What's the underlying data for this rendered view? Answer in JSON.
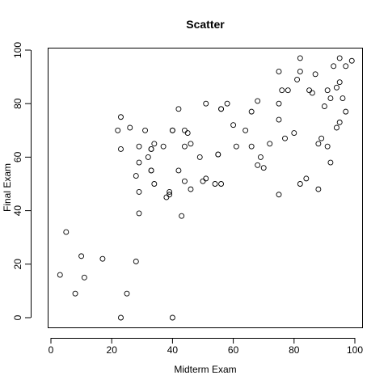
{
  "chart_data": {
    "type": "scatter",
    "title": "Scatter",
    "xlabel": "Midterm Exam",
    "ylabel": "Final Exam",
    "xlim": [
      0,
      100
    ],
    "ylim": [
      0,
      100
    ],
    "xticks": [
      "0",
      "20",
      "40",
      "60",
      "80",
      "100"
    ],
    "yticks": [
      "0",
      "20",
      "40",
      "60",
      "80",
      "100"
    ],
    "grid": false,
    "marker": "open-circle",
    "color": "#000000",
    "points": [
      [
        3,
        16
      ],
      [
        5,
        32
      ],
      [
        8,
        9
      ],
      [
        10,
        23
      ],
      [
        11,
        15
      ],
      [
        17,
        22
      ],
      [
        22,
        70
      ],
      [
        23,
        75
      ],
      [
        23,
        63
      ],
      [
        23,
        0
      ],
      [
        25,
        9
      ],
      [
        26,
        71
      ],
      [
        28,
        53
      ],
      [
        28,
        21
      ],
      [
        29,
        64
      ],
      [
        29,
        58
      ],
      [
        29,
        47
      ],
      [
        29,
        39
      ],
      [
        31,
        70
      ],
      [
        32,
        60
      ],
      [
        33,
        63
      ],
      [
        33,
        63
      ],
      [
        33,
        55
      ],
      [
        33,
        55
      ],
      [
        34,
        65
      ],
      [
        34,
        50
      ],
      [
        37,
        64
      ],
      [
        38,
        45
      ],
      [
        39,
        47
      ],
      [
        39,
        46
      ],
      [
        40,
        70
      ],
      [
        40,
        70
      ],
      [
        40,
        0
      ],
      [
        42,
        78
      ],
      [
        42,
        55
      ],
      [
        43,
        38
      ],
      [
        44,
        70
      ],
      [
        44,
        64
      ],
      [
        44,
        51
      ],
      [
        45,
        69
      ],
      [
        46,
        65
      ],
      [
        46,
        48
      ],
      [
        49,
        60
      ],
      [
        50,
        51
      ],
      [
        51,
        80
      ],
      [
        51,
        52
      ],
      [
        54,
        50
      ],
      [
        55,
        61
      ],
      [
        55,
        61
      ],
      [
        56,
        78
      ],
      [
        56,
        78
      ],
      [
        56,
        50
      ],
      [
        58,
        80
      ],
      [
        60,
        72
      ],
      [
        61,
        64
      ],
      [
        64,
        70
      ],
      [
        66,
        77
      ],
      [
        66,
        64
      ],
      [
        68,
        81
      ],
      [
        68,
        57
      ],
      [
        69,
        60
      ],
      [
        70,
        56
      ],
      [
        72,
        65
      ],
      [
        75,
        92
      ],
      [
        75,
        80
      ],
      [
        75,
        74
      ],
      [
        75,
        46
      ],
      [
        76,
        85
      ],
      [
        77,
        67
      ],
      [
        78,
        85
      ],
      [
        80,
        69
      ],
      [
        81,
        89
      ],
      [
        82,
        97
      ],
      [
        82,
        92
      ],
      [
        82,
        50
      ],
      [
        84,
        52
      ],
      [
        85,
        85
      ],
      [
        86,
        84
      ],
      [
        87,
        91
      ],
      [
        88,
        65
      ],
      [
        88,
        48
      ],
      [
        89,
        67
      ],
      [
        90,
        79
      ],
      [
        91,
        85
      ],
      [
        91,
        64
      ],
      [
        92,
        82
      ],
      [
        92,
        58
      ],
      [
        93,
        94
      ],
      [
        94,
        86
      ],
      [
        94,
        71
      ],
      [
        95,
        97
      ],
      [
        95,
        88
      ],
      [
        95,
        73
      ],
      [
        96,
        82
      ],
      [
        97,
        94
      ],
      [
        97,
        77
      ],
      [
        99,
        96
      ]
    ]
  }
}
